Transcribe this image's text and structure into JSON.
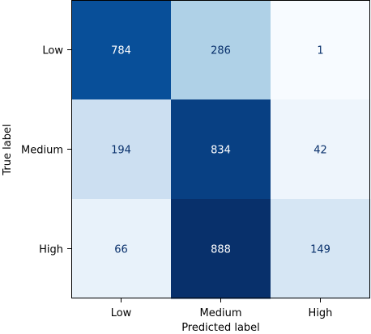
{
  "chart_data": {
    "type": "heatmap",
    "x_categories": [
      "Low",
      "Medium",
      "High"
    ],
    "y_categories": [
      "Low",
      "Medium",
      "High"
    ],
    "values": [
      [
        784,
        286,
        1
      ],
      [
        194,
        834,
        42
      ],
      [
        66,
        888,
        149
      ]
    ],
    "xlabel": "Predicted label",
    "ylabel": "True label",
    "colormap": "Blues",
    "color_min": "#f7fbff",
    "color_max": "#08306b",
    "label_color_dark": "#08306b",
    "label_color_light": "#ffffff",
    "colorbar": false,
    "grid": false
  }
}
